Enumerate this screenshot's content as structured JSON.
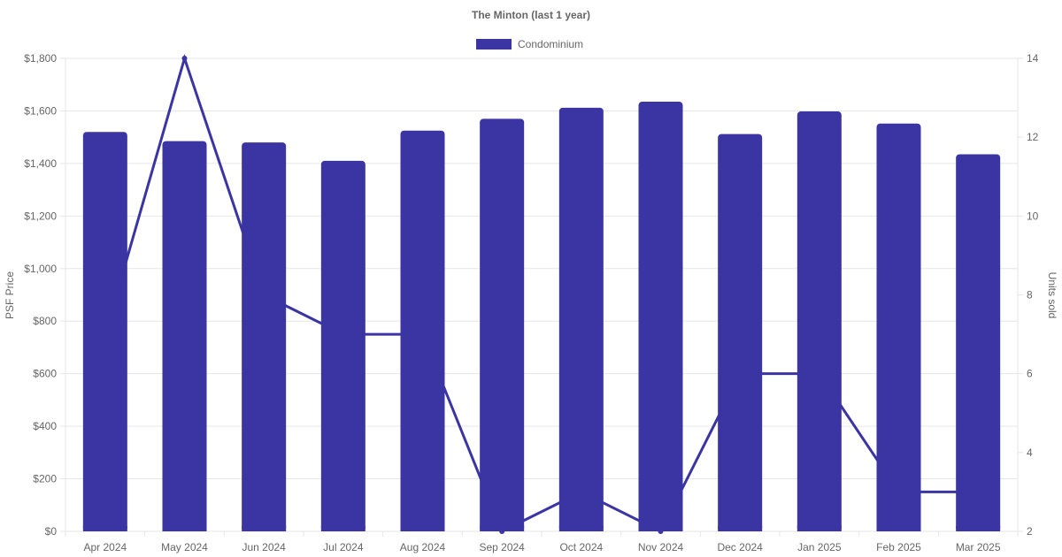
{
  "chart_data": {
    "type": "bar",
    "title": "The Minton (last 1 year)",
    "categories": [
      "Apr 2024",
      "May 2024",
      "Jun 2024",
      "Jul 2024",
      "Aug 2024",
      "Sep 2024",
      "Oct 2024",
      "Nov 2024",
      "Dec 2024",
      "Jan 2025",
      "Feb 2025",
      "Mar 2025"
    ],
    "series": [
      {
        "name": "Condominium",
        "type": "bar",
        "axis": "left",
        "values": [
          1520,
          1485,
          1480,
          1410,
          1525,
          1570,
          1612,
          1635,
          1512,
          1598,
          1552,
          1435
        ]
      },
      {
        "type": "line",
        "axis": "right",
        "values": [
          7,
          14,
          8,
          7,
          7,
          2,
          3,
          2,
          6,
          6,
          3,
          3
        ]
      }
    ],
    "ylabel": "PSF Price",
    "y2label": "Units sold",
    "ylim": [
      0,
      1800
    ],
    "y2lim": [
      2,
      14
    ],
    "yticks": [
      "$0",
      "$200",
      "$400",
      "$600",
      "$800",
      "$1,000",
      "$1,200",
      "$1,400",
      "$1,600",
      "$1,800"
    ],
    "y2ticks": [
      "2",
      "4",
      "6",
      "8",
      "10",
      "12",
      "14"
    ],
    "legend_position": "top-center",
    "grid": true,
    "color": "#3a35a2"
  }
}
